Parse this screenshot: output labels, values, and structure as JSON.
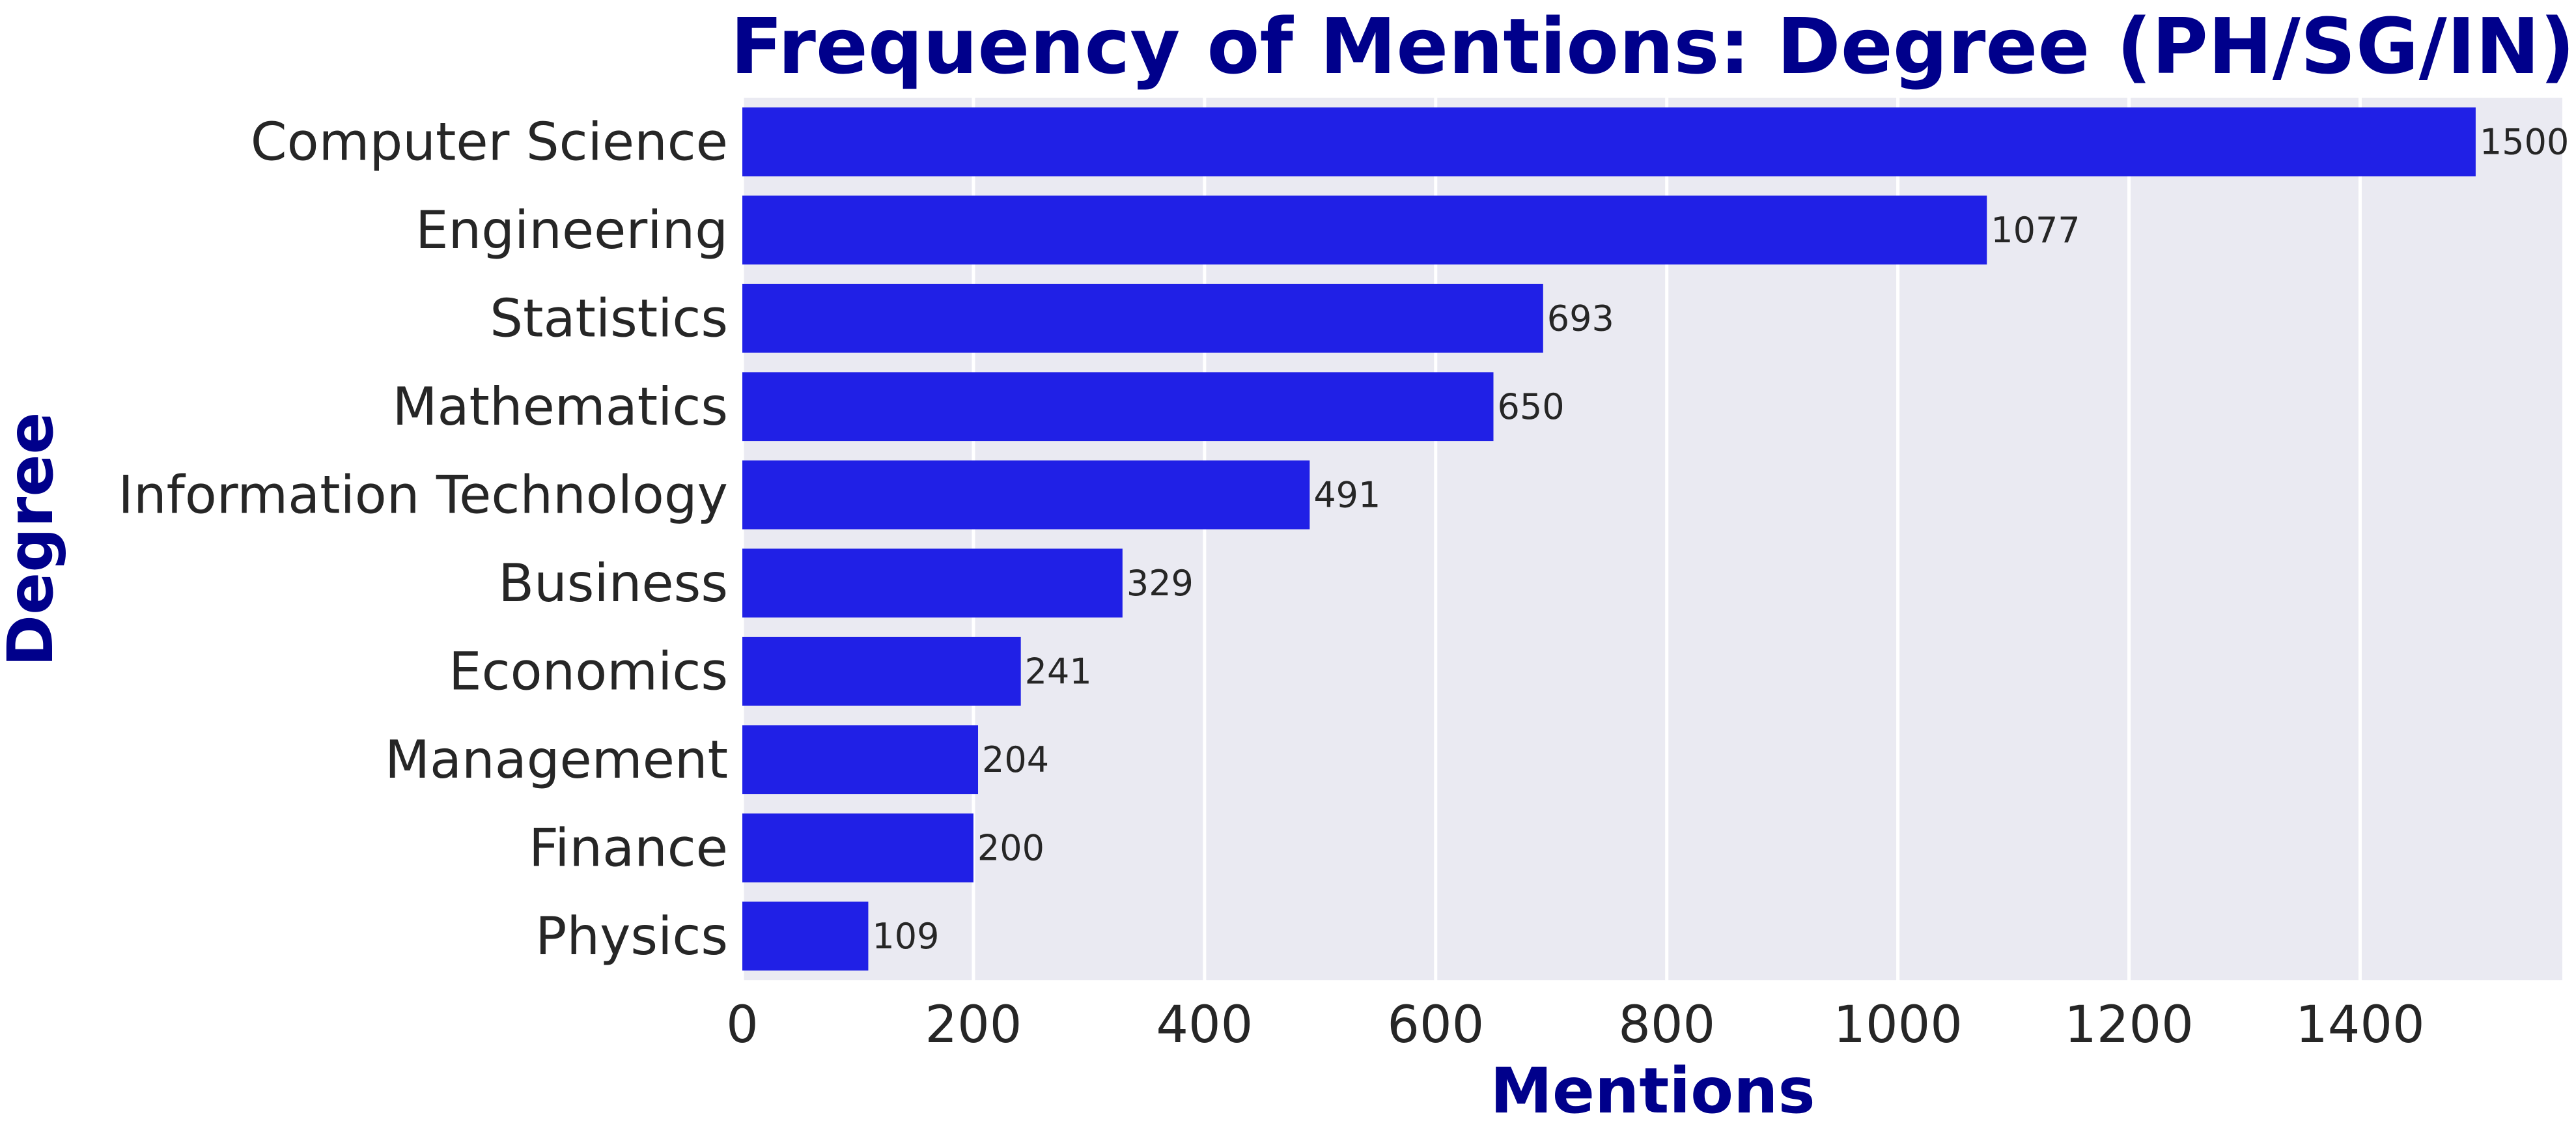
{
  "chart_data": {
    "type": "bar",
    "orientation": "horizontal",
    "title": "Frequency of Mentions: Degree (PH/SG/IN)",
    "xlabel": "Mentions",
    "ylabel": "Degree",
    "categories": [
      "Computer Science",
      "Engineering",
      "Statistics",
      "Mathematics",
      "Information Technology",
      "Business",
      "Economics",
      "Management",
      "Finance",
      "Physics"
    ],
    "values": [
      1500,
      1077,
      693,
      650,
      491,
      329,
      241,
      204,
      200,
      109
    ],
    "value_labels": [
      "1500",
      "1077",
      "693",
      "650",
      "491",
      "329",
      "241",
      "204",
      "200",
      "109"
    ],
    "xlim": [
      0,
      1575
    ],
    "xticks": [
      0,
      200,
      400,
      600,
      800,
      1000,
      1200,
      1400
    ],
    "xtick_labels": [
      "0",
      "200",
      "400",
      "600",
      "800",
      "1000",
      "1200",
      "1400"
    ],
    "grid": true,
    "colors": {
      "bar": "#2020e6",
      "plot_background": "#eaeaf2",
      "grid": "#ffffff",
      "title": "#00008b",
      "axis_title": "#00008b",
      "tick_label": "#262626",
      "value_label": "#262626"
    }
  }
}
